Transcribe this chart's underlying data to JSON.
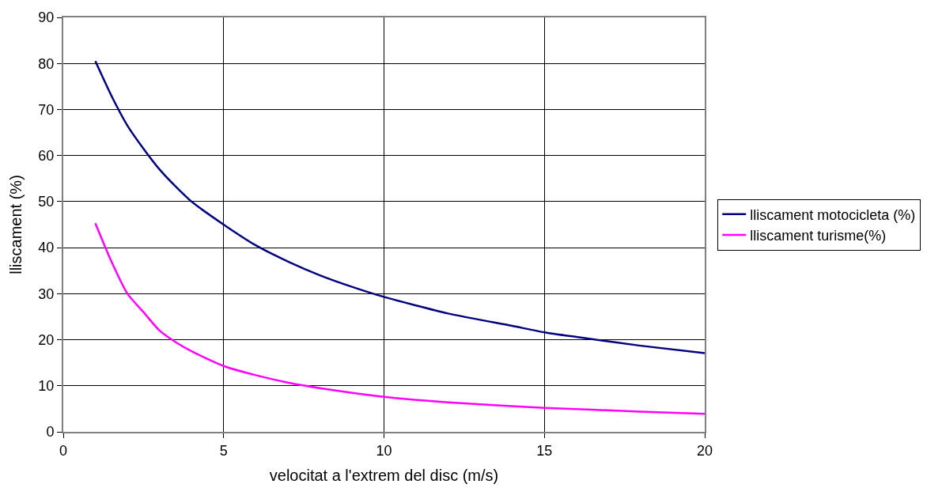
{
  "chart_data": {
    "type": "line",
    "xlabel": "velocitat a l'extrem del disc (m/s)",
    "ylabel": "lliscament (%)",
    "xlim": [
      0,
      20
    ],
    "xticks": [
      0,
      5,
      10,
      15,
      20
    ],
    "ylim": [
      0,
      90
    ],
    "yticks": [
      0,
      10,
      20,
      30,
      40,
      50,
      60,
      70,
      80,
      90
    ],
    "grid": true,
    "legend": "right",
    "marker": "none",
    "line_style": "solid",
    "series": [
      {
        "name": "lliscament motocicleta (%)",
        "color": "#000080",
        "x": [
          1,
          1.5,
          2,
          2.5,
          3,
          3.5,
          4,
          5,
          6,
          7,
          8,
          9,
          10,
          12,
          14,
          15,
          16,
          18,
          20
        ],
        "values": [
          80.5,
          73,
          66.5,
          61.5,
          57,
          53.3,
          50,
          45,
          40.5,
          37,
          34,
          31.5,
          29.3,
          25.7,
          23,
          21.6,
          20.6,
          18.7,
          17.1
        ]
      },
      {
        "name": "lliscament turisme(%)",
        "color": "#ff00ff",
        "x": [
          1,
          1.5,
          2,
          2.5,
          3,
          3.5,
          4,
          5,
          6,
          7,
          8,
          10,
          12,
          15,
          18,
          20
        ],
        "values": [
          45.3,
          37,
          30,
          26,
          22,
          19.5,
          17.5,
          14.3,
          12.3,
          10.7,
          9.5,
          7.6,
          6.4,
          5.2,
          4.4,
          3.9
        ]
      }
    ]
  }
}
